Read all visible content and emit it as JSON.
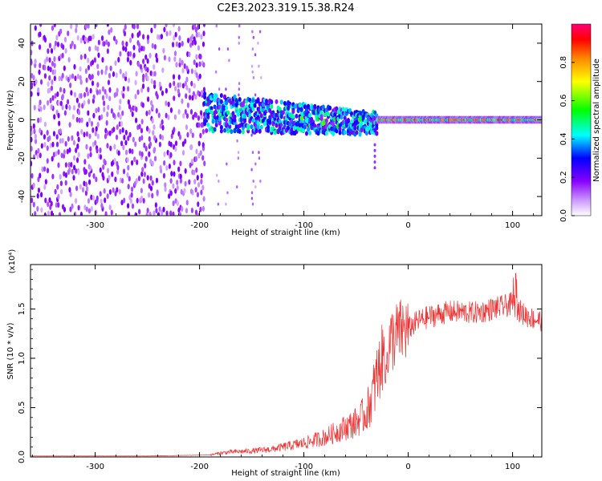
{
  "title": "C2E3.2023.319.15.38.R24",
  "chart_data": [
    {
      "type": "heatmap",
      "xlabel": "Height of straight line (km)",
      "ylabel": "Frequency (Hz)",
      "xlim": [
        -362,
        128
      ],
      "ylim": [
        -50,
        50
      ],
      "xticks": [
        -300,
        -200,
        -100,
        0,
        100
      ],
      "yticks": [
        -40,
        -20,
        0,
        20,
        40
      ],
      "colorbar": {
        "label": "Normalized spectral amplitude",
        "range": [
          0,
          1
        ],
        "ticks": [
          0.0,
          0.2,
          0.4,
          0.6,
          0.8
        ],
        "colors": [
          "#ffffff",
          "#9933ff",
          "#0000ff",
          "#00ffff",
          "#00ff00",
          "#ffff00",
          "#ff8800",
          "#ff0000",
          "#ff0066"
        ]
      }
    },
    {
      "type": "line",
      "xlabel": "Height of straight line (km)",
      "ylabel": "SNR (10 * v/v)",
      "scale_label": "(x10⁴)",
      "xlim": [
        -362,
        128
      ],
      "ylim": [
        0,
        1.95
      ],
      "xticks": [
        -300,
        -200,
        -100,
        0,
        100
      ],
      "yticks": [
        0.0,
        0.5,
        1.0,
        1.5
      ],
      "series_color": "#ee3333",
      "x": [
        -362,
        -250,
        -190,
        -180,
        -170,
        -150,
        -130,
        -110,
        -100,
        -90,
        -80,
        -70,
        -60,
        -50,
        -40,
        -35,
        -30,
        -25,
        -20,
        -15,
        -10,
        -5,
        0,
        10,
        20,
        30,
        40,
        50,
        60,
        70,
        80,
        90,
        100,
        105,
        110,
        120,
        128
      ],
      "values": [
        0.01,
        0.01,
        0.02,
        0.04,
        0.05,
        0.06,
        0.08,
        0.12,
        0.14,
        0.17,
        0.2,
        0.25,
        0.3,
        0.35,
        0.45,
        0.6,
        0.8,
        1.0,
        1.1,
        1.2,
        1.25,
        1.28,
        1.3,
        1.38,
        1.42,
        1.45,
        1.47,
        1.47,
        1.46,
        1.47,
        1.5,
        1.52,
        1.55,
        1.5,
        1.45,
        1.4,
        1.38
      ]
    }
  ]
}
